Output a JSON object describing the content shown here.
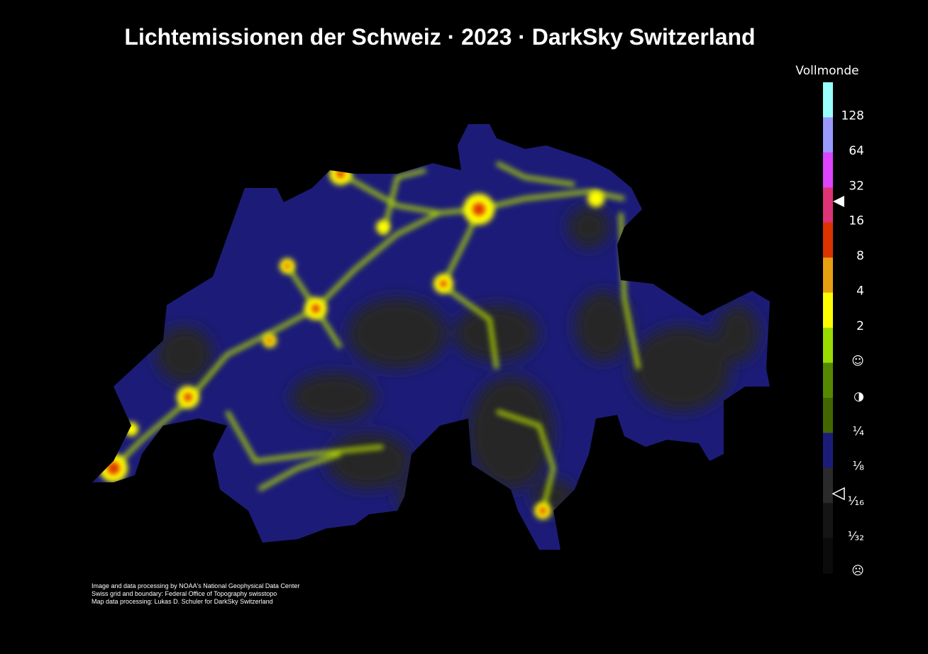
{
  "header": {
    "title": "Lichtemissionen der Schweiz · 2023 · DarkSky Switzerland"
  },
  "legend": {
    "title": "Vollmonde",
    "colors": [
      "#99ffff",
      "#9999ff",
      "#dd44ff",
      "#dd3377",
      "#dd3300",
      "#e8a010",
      "#ffff00",
      "#99dd00",
      "#558800",
      "#446600",
      "#1c1c78",
      "#2a2a2a",
      "#151515",
      "#0b0b0b"
    ],
    "labels": [
      "128",
      "64",
      "32",
      "16",
      "8",
      "4",
      "2",
      "☺",
      "◑",
      "¼",
      "⅛",
      "¹⁄₁₆",
      "¹⁄₃₂",
      "☹"
    ]
  },
  "credits": [
    "Image and data processing by NOAA's National Geophysical Data Center",
    "Swiss grid and boundary: Federal Office of Topography swisstopo",
    "Map data processing: Lukas D. Schuler for DarkSky Switzerland"
  ]
}
